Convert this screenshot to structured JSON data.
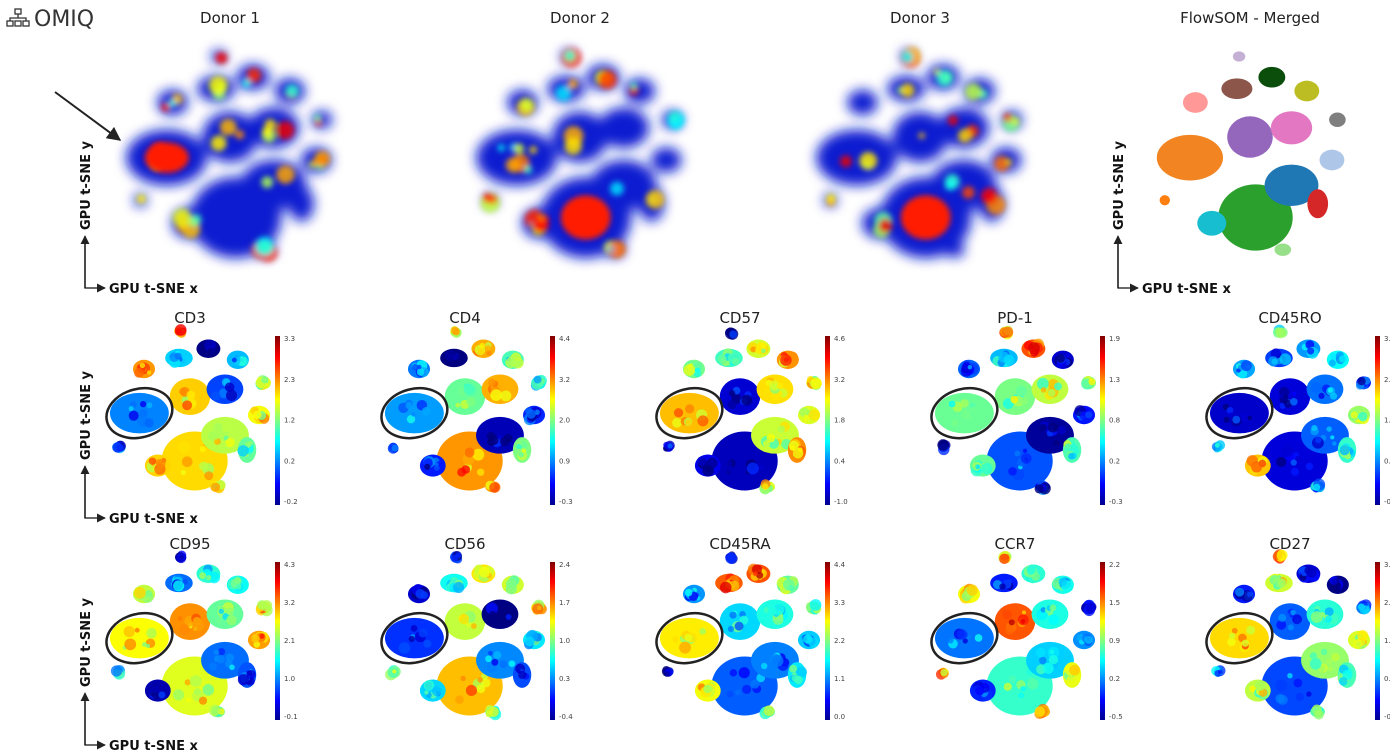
{
  "logo": "OMIQ",
  "axis_labels": {
    "x": "GPU t-SNE x",
    "y": "GPU t-SNE y"
  },
  "top_panels": [
    {
      "title": "Donor 1"
    },
    {
      "title": "Donor 2"
    },
    {
      "title": "Donor 3"
    },
    {
      "title": "FlowSOM - Merged"
    }
  ],
  "marker_panels": [
    {
      "title": "CD3",
      "colorbar_ticks": [
        "3.3",
        "2.3",
        "1.2",
        "0.2",
        "-0.2"
      ]
    },
    {
      "title": "CD4",
      "colorbar_ticks": [
        "4.4",
        "3.2",
        "2.0",
        "0.9",
        "-0.3"
      ]
    },
    {
      "title": "CD57",
      "colorbar_ticks": [
        "4.6",
        "3.2",
        "1.8",
        "0.4",
        "-1.0"
      ]
    },
    {
      "title": "PD-1",
      "colorbar_ticks": [
        "1.9",
        "1.3",
        "0.8",
        "0.2",
        "-0.3"
      ]
    },
    {
      "title": "CD45RO",
      "colorbar_ticks": [
        "3.6",
        "2.6",
        "1.5",
        "0.5",
        "-0.5"
      ]
    },
    {
      "title": "CD95",
      "colorbar_ticks": [
        "4.3",
        "3.2",
        "2.1",
        "1.0",
        "-0.1"
      ]
    },
    {
      "title": "CD56",
      "colorbar_ticks": [
        "2.4",
        "1.7",
        "1.0",
        "0.3",
        "-0.4"
      ]
    },
    {
      "title": "CD45RA",
      "colorbar_ticks": [
        "4.4",
        "3.3",
        "2.2",
        "1.1",
        "0.0"
      ]
    },
    {
      "title": "CCR7",
      "colorbar_ticks": [
        "2.2",
        "1.5",
        "0.9",
        "0.2",
        "-0.5"
      ]
    },
    {
      "title": "CD27",
      "colorbar_ticks": [
        "3.3",
        "2.4",
        "1.5",
        "0.6",
        "-0.3"
      ]
    }
  ]
}
